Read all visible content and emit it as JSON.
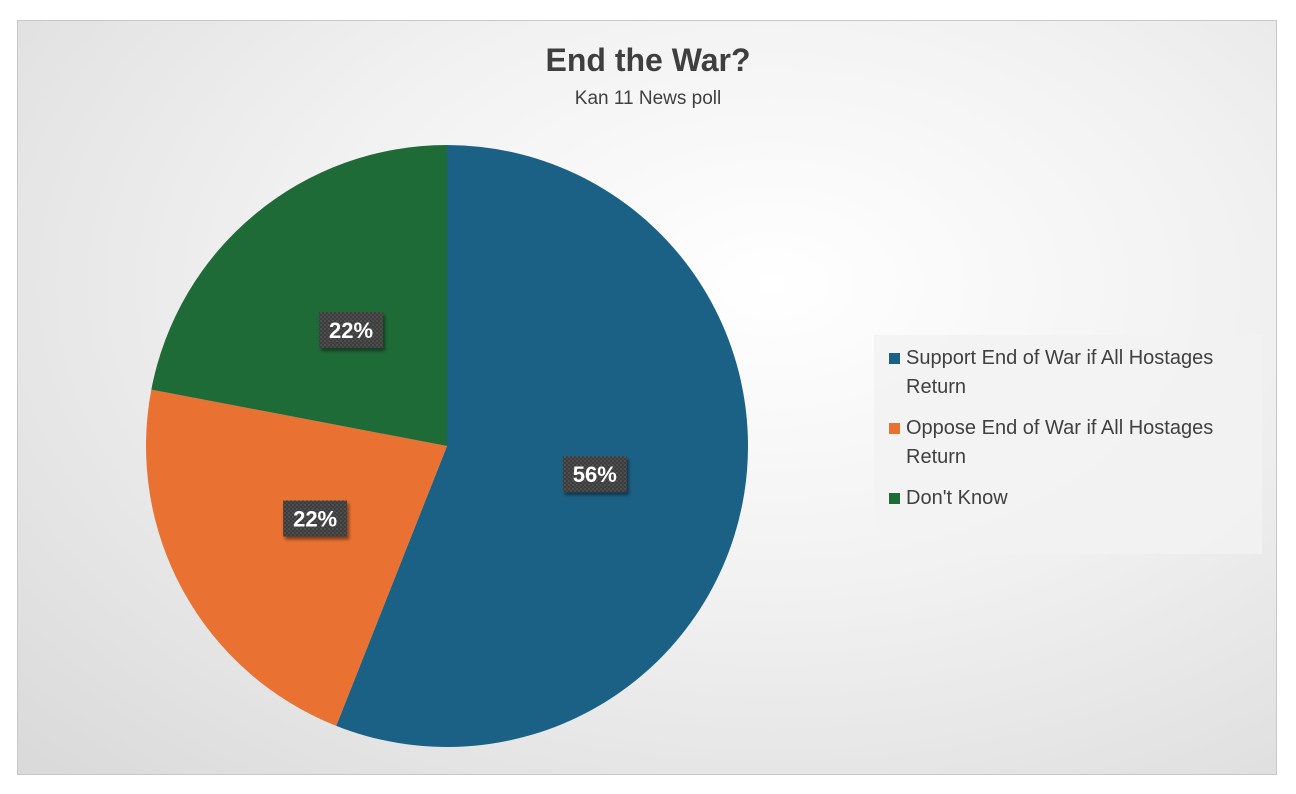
{
  "chart_data": {
    "type": "pie",
    "title": "End the War?",
    "subtitle": "Kan 11 News poll",
    "legend_position": "right",
    "slices": [
      {
        "label": "Support End of War if All Hostages Return",
        "value": 56,
        "display": "56%",
        "color": "#1b6185"
      },
      {
        "label": "Oppose End of War if All Hostages Return",
        "value": 22,
        "display": "22%",
        "color": "#e97132"
      },
      {
        "label": "Don't Know",
        "value": 22,
        "display": "22%",
        "color": "#1e6b38"
      }
    ]
  }
}
